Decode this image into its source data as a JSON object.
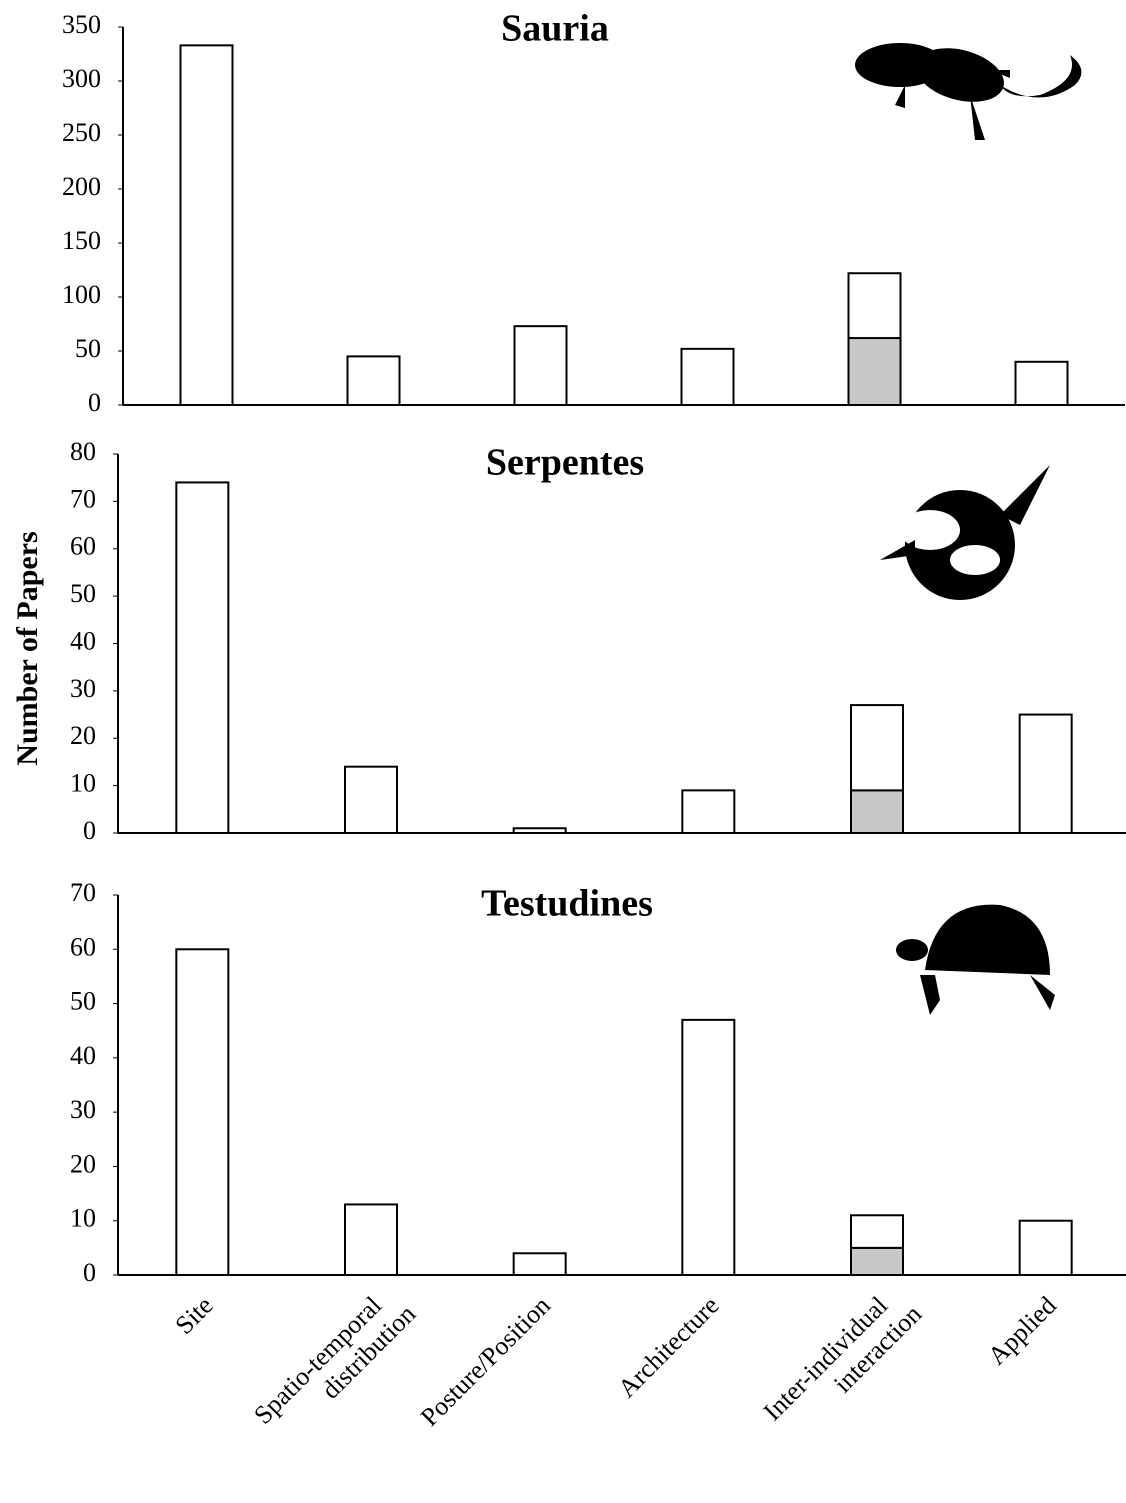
{
  "chart_data": [
    {
      "type": "bar",
      "title": "Sauria",
      "series": [
        {
          "color": "#c8c8c8",
          "values": [
            null,
            null,
            null,
            null,
            62,
            null
          ]
        },
        {
          "color": "#ffffff",
          "values": [
            333,
            45,
            73,
            52,
            60,
            40
          ]
        }
      ],
      "ylim": [
        0,
        350
      ],
      "yticks": [
        0,
        50,
        100,
        150,
        200,
        250,
        300,
        350
      ]
    },
    {
      "type": "bar",
      "title": "Serpentes",
      "ylabel": "Number of Papers",
      "series": [
        {
          "color": "#c8c8c8",
          "values": [
            null,
            null,
            null,
            null,
            9,
            null
          ]
        },
        {
          "color": "#ffffff",
          "values": [
            74,
            14,
            1,
            9,
            18,
            25
          ]
        }
      ],
      "ylim": [
        0,
        80
      ],
      "yticks": [
        0,
        10,
        20,
        30,
        40,
        50,
        60,
        70,
        80
      ]
    },
    {
      "type": "bar",
      "title": "Testudines",
      "categories": [
        "Site",
        "Spatio-temporal distribution",
        "Posture/Position",
        "Architecture",
        "Inter-individual interaction",
        "Applied"
      ],
      "series": [
        {
          "color": "#c8c8c8",
          "values": [
            null,
            null,
            null,
            null,
            5,
            null
          ]
        },
        {
          "color": "#ffffff",
          "values": [
            60,
            13,
            4,
            47,
            6,
            10
          ]
        }
      ],
      "ylim": [
        0,
        70
      ],
      "yticks": [
        0,
        10,
        20,
        30,
        40,
        50,
        60,
        70
      ]
    }
  ]
}
